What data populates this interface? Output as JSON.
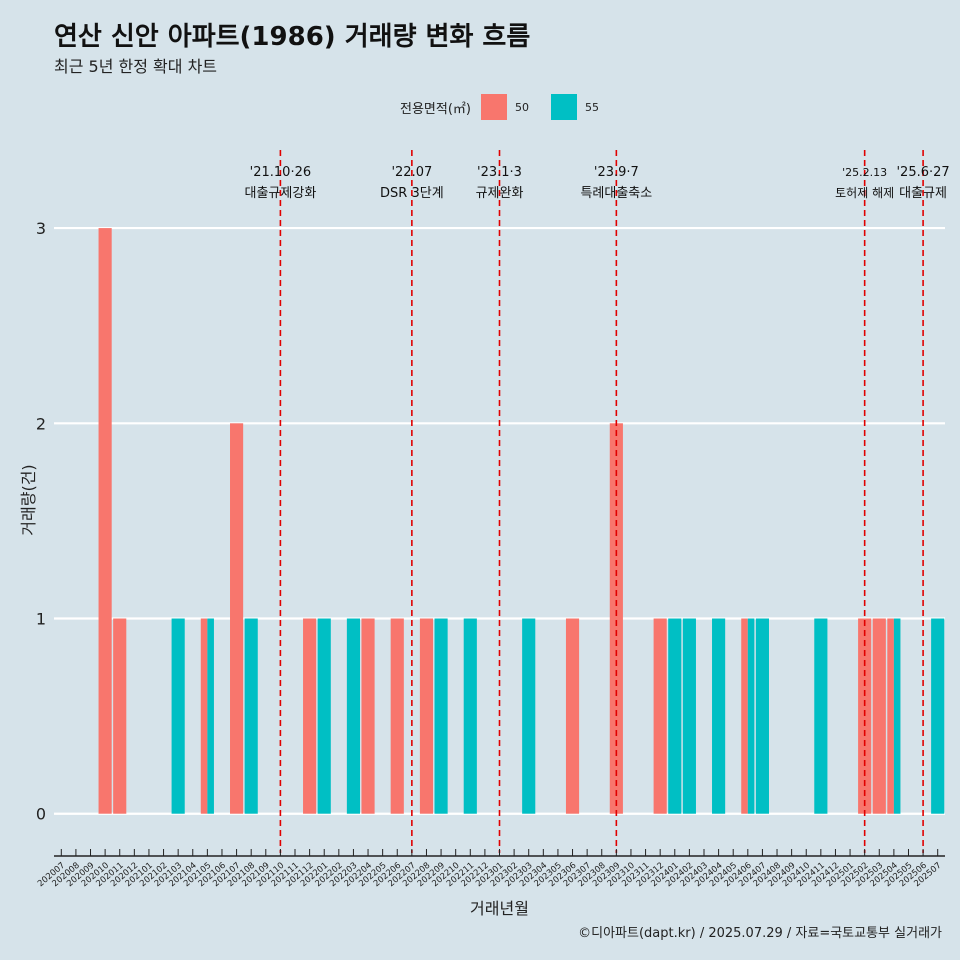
{
  "title": "연산 신안 아파트(1986) 거래량 변화 흐름",
  "subtitle": "최근 5년 한정 확대 차트",
  "caption": "©디아파트(dapt.kr) / 2025.07.29 / 자료=국토교통부 실거래가",
  "colors": {
    "s50": "#f8766d",
    "s55": "#00bfc4",
    "vline": "#e00000"
  },
  "chart_data": {
    "type": "bar",
    "legend_title": "전용면적(㎡)",
    "legend_position": "top",
    "xlabel": "거래년월",
    "ylabel": "거래량(건)",
    "ylim": [
      -0.15,
      3.4
    ],
    "yticks": [
      0,
      1,
      2,
      3
    ],
    "grid": true,
    "categories": [
      "202007",
      "202008",
      "202009",
      "202010",
      "202011",
      "202012",
      "202101",
      "202102",
      "202103",
      "202104",
      "202105",
      "202106",
      "202107",
      "202108",
      "202109",
      "202110",
      "202111",
      "202112",
      "202201",
      "202202",
      "202203",
      "202204",
      "202205",
      "202206",
      "202207",
      "202208",
      "202209",
      "202210",
      "202211",
      "202212",
      "202301",
      "202302",
      "202303",
      "202304",
      "202305",
      "202306",
      "202307",
      "202308",
      "202309",
      "202310",
      "202311",
      "202312",
      "202401",
      "202402",
      "202403",
      "202404",
      "202405",
      "202406",
      "202407",
      "202408",
      "202409",
      "202410",
      "202411",
      "202412",
      "202501",
      "202502",
      "202503",
      "202504",
      "202505",
      "202506",
      "202507"
    ],
    "series": [
      {
        "name": "50",
        "color_key": "s50",
        "values": [
          0,
          0,
          0,
          3,
          1,
          0,
          0,
          0,
          0,
          0,
          1,
          0,
          2,
          0,
          0,
          0,
          0,
          1,
          0,
          0,
          0,
          1,
          0,
          1,
          0,
          1,
          0,
          0,
          0,
          0,
          0,
          0,
          0,
          0,
          0,
          1,
          0,
          0,
          2,
          0,
          0,
          1,
          0,
          0,
          0,
          0,
          0,
          1,
          0,
          0,
          0,
          0,
          0,
          0,
          0,
          1,
          1,
          1,
          0,
          0,
          0
        ]
      },
      {
        "name": "55",
        "color_key": "s55",
        "values": [
          0,
          0,
          0,
          0,
          0,
          0,
          0,
          0,
          1,
          0,
          1,
          0,
          0,
          1,
          0,
          0,
          0,
          0,
          1,
          0,
          1,
          0,
          0,
          0,
          0,
          0,
          1,
          0,
          1,
          0,
          0,
          0,
          1,
          0,
          0,
          0,
          0,
          0,
          0,
          0,
          0,
          0,
          1,
          1,
          0,
          1,
          0,
          1,
          1,
          0,
          0,
          0,
          1,
          0,
          0,
          0,
          0,
          1,
          0,
          0,
          1
        ]
      }
    ],
    "events": [
      {
        "month": "202110",
        "date": "'21.10·26",
        "label": "대출규제강화"
      },
      {
        "month": "202207",
        "date": "'22.07",
        "label": "DSR 3단계"
      },
      {
        "month": "202301",
        "date": "'23.1·3",
        "label": "규제완화"
      },
      {
        "month": "202309",
        "date": "'23.9·7",
        "label": "특례대출축소"
      },
      {
        "month": "202502",
        "date": "'25.2.13",
        "label": "토허제 해제"
      },
      {
        "month": "202506",
        "date": "'25.6·27",
        "label": "대출규제"
      }
    ]
  }
}
